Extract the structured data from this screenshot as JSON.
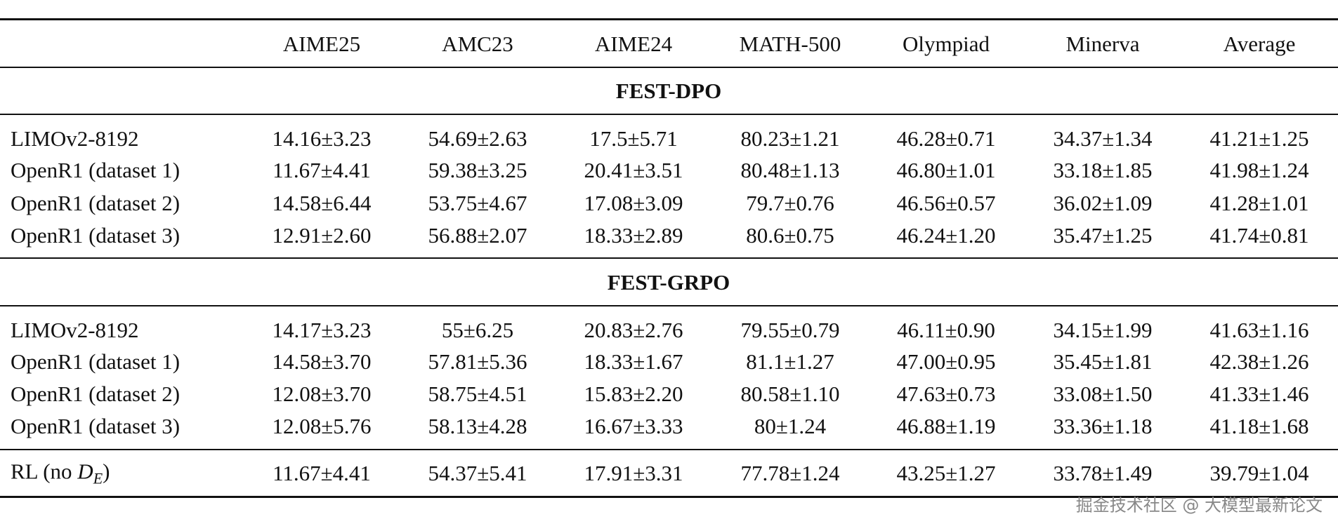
{
  "table": {
    "columns": [
      "AIME25",
      "AMC23",
      "AIME24",
      "MATH-500",
      "Olympiad",
      "Minerva",
      "Average"
    ],
    "sections": [
      {
        "title": "FEST-DPO",
        "rows": [
          {
            "label": "LIMOv2-8192",
            "values": [
              "14.16±3.23",
              "54.69±2.63",
              "17.5±5.71",
              "80.23±1.21",
              "46.28±0.71",
              "34.37±1.34",
              "41.21±1.25"
            ]
          },
          {
            "label": "OpenR1 (dataset 1)",
            "values": [
              "11.67±4.41",
              "59.38±3.25",
              "20.41±3.51",
              "80.48±1.13",
              "46.80±1.01",
              "33.18±1.85",
              "41.98±1.24"
            ]
          },
          {
            "label": "OpenR1 (dataset 2)",
            "values": [
              "14.58±6.44",
              "53.75±4.67",
              "17.08±3.09",
              "79.7±0.76",
              "46.56±0.57",
              "36.02±1.09",
              "41.28±1.01"
            ]
          },
          {
            "label": "OpenR1 (dataset 3)",
            "values": [
              "12.91±2.60",
              "56.88±2.07",
              "18.33±2.89",
              "80.6±0.75",
              "46.24±1.20",
              "35.47±1.25",
              "41.74±0.81"
            ]
          }
        ]
      },
      {
        "title": "FEST-GRPO",
        "rows": [
          {
            "label": "LIMOv2-8192",
            "values": [
              "14.17±3.23",
              "55±6.25",
              "20.83±2.76",
              "79.55±0.79",
              "46.11±0.90",
              "34.15±1.99",
              "41.63±1.16"
            ]
          },
          {
            "label": "OpenR1 (dataset 1)",
            "values": [
              "14.58±3.70",
              "57.81±5.36",
              "18.33±1.67",
              "81.1±1.27",
              "47.00±0.95",
              "35.45±1.81",
              "42.38±1.26"
            ]
          },
          {
            "label": "OpenR1 (dataset 2)",
            "values": [
              "12.08±3.70",
              "58.75±4.51",
              "15.83±2.20",
              "80.58±1.10",
              "47.63±0.73",
              "33.08±1.50",
              "41.33±1.46"
            ]
          },
          {
            "label": "OpenR1 (dataset 3)",
            "values": [
              "12.08±5.76",
              "58.13±4.28",
              "16.67±3.33",
              "80±1.24",
              "46.88±1.19",
              "33.36±1.18",
              "41.18±1.68"
            ]
          }
        ]
      }
    ],
    "final_row": {
      "label_prefix": "RL (no ",
      "label_symbol": "D",
      "label_subscript": "E",
      "label_suffix": ")",
      "values": [
        "11.67±4.41",
        "54.37±5.41",
        "17.91±3.31",
        "77.78±1.24",
        "43.25±1.27",
        "33.78±1.49",
        "39.79±1.04"
      ]
    }
  },
  "watermark": "掘金技术社区 @ 大模型最新论文"
}
